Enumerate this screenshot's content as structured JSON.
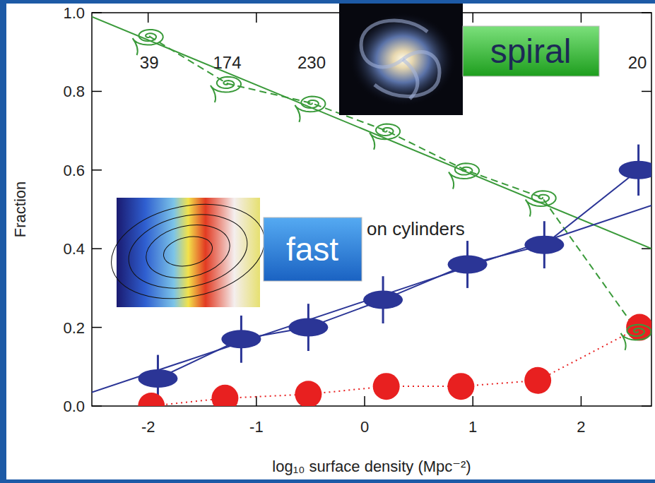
{
  "chart_data": {
    "type": "scatter",
    "x_label": "log₁₀ surface density (Mpc⁻²)",
    "y_label": "Fraction",
    "xlim": [
      -2.52,
      2.65
    ],
    "ylim": [
      0,
      1.0
    ],
    "xticks": [
      -2,
      -1,
      0,
      1,
      2
    ],
    "yticks": [
      {
        "value": 0,
        "label": "0.0"
      },
      {
        "value": 0.2,
        "label": "0.2"
      },
      {
        "value": 0.4,
        "label": "0.4"
      },
      {
        "value": 0.6,
        "label": "0.6"
      },
      {
        "value": 0.8,
        "label": "0.8"
      },
      {
        "value": 1.0,
        "label": "1.0"
      }
    ],
    "bin_counts": [
      39,
      174,
      230,
      null,
      null,
      null,
      20
    ],
    "annotations": [
      "on cylinders",
      "spiral",
      "fast"
    ],
    "series": [
      {
        "color": "#3a9a3a",
        "marker": "spiral",
        "line_style": "dashed",
        "x": [
          -1.99,
          -1.27,
          -0.49,
          0.2,
          0.93,
          1.64,
          2.52
        ],
        "values": [
          0.94,
          0.82,
          0.77,
          0.7,
          0.6,
          0.53,
          0.19
        ]
      },
      {
        "type": "line",
        "color": "#3a9a3a",
        "line_style": "solid",
        "x": [
          -2.52,
          2.65
        ],
        "values": [
          0.99,
          0.4
        ]
      },
      {
        "color": "#2b3596",
        "marker": "ellipse",
        "line_style": "solid",
        "x": [
          -1.91,
          -1.14,
          -0.52,
          0.17,
          0.95,
          1.66,
          2.53
        ],
        "values": [
          0.07,
          0.17,
          0.2,
          0.27,
          0.36,
          0.41,
          0.6
        ],
        "errors": [
          0.06,
          0.06,
          0.06,
          0.06,
          0.06,
          0.06,
          0.065
        ]
      },
      {
        "type": "line",
        "color": "#2b3596",
        "line_style": "solid",
        "x": [
          -2.52,
          2.65
        ],
        "values": [
          0.035,
          0.51
        ]
      },
      {
        "color": "#e82020",
        "marker": "circle",
        "line_style": "dotted",
        "x": [
          -1.97,
          -1.29,
          -0.52,
          0.2,
          0.89,
          1.6,
          2.54
        ],
        "values": [
          0.0,
          0.02,
          0.03,
          0.05,
          0.05,
          0.065,
          0.2
        ]
      }
    ]
  }
}
